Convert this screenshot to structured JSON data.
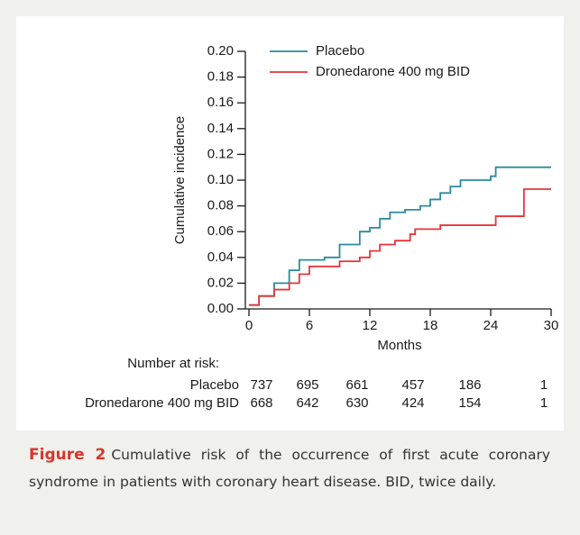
{
  "chart_data": {
    "type": "step",
    "xlabel": "Months",
    "ylabel": "Cumulative incidence",
    "xlim": [
      0,
      30
    ],
    "ylim": [
      0,
      0.2
    ],
    "xticks": [
      0,
      6,
      12,
      18,
      24,
      30
    ],
    "yticks": [
      {
        "value": 0,
        "label": "0.00"
      },
      {
        "value": 0.02,
        "label": "0.02"
      },
      {
        "value": 0.04,
        "label": "0.04"
      },
      {
        "value": 0.06,
        "label": "0.06"
      },
      {
        "value": 0.08,
        "label": "0.08"
      },
      {
        "value": 0.1,
        "label": "0.10"
      },
      {
        "value": 0.12,
        "label": "0.12"
      },
      {
        "value": 0.14,
        "label": "0.14"
      },
      {
        "value": 0.16,
        "label": "0.16"
      },
      {
        "value": 0.18,
        "label": "0.18"
      },
      {
        "value": 0.2,
        "label": "0.20"
      }
    ],
    "legend": "top-left",
    "series": [
      {
        "name": "Placebo",
        "color": "#2b8a9c",
        "x": [
          0,
          1,
          2.5,
          4,
          5,
          7.5,
          9,
          11,
          12,
          13,
          14,
          15.5,
          17,
          18,
          19,
          20,
          21,
          24,
          24.5,
          30
        ],
        "values": [
          0.003,
          0.01,
          0.02,
          0.03,
          0.038,
          0.04,
          0.05,
          0.06,
          0.063,
          0.07,
          0.075,
          0.077,
          0.08,
          0.085,
          0.09,
          0.095,
          0.1,
          0.103,
          0.11,
          0.11
        ]
      },
      {
        "name": "Dronedarone 400 mg BID",
        "color": "#e8343a",
        "x": [
          0,
          1,
          2.5,
          4,
          5,
          6,
          8,
          9,
          11,
          12,
          13,
          14.5,
          16,
          16.5,
          19,
          24,
          24.5,
          27.3,
          30
        ],
        "values": [
          0.003,
          0.01,
          0.015,
          0.02,
          0.027,
          0.033,
          0.033,
          0.037,
          0.04,
          0.045,
          0.05,
          0.053,
          0.058,
          0.062,
          0.065,
          0.065,
          0.072,
          0.093,
          0.093
        ]
      }
    ],
    "at_risk": {
      "title": "Number at risk:",
      "rows": [
        {
          "name": "Placebo",
          "values": [
            "737",
            "695",
            "661",
            "457",
            "186",
            "1"
          ]
        },
        {
          "name": "Dronedarone 400 mg BID",
          "values": [
            "668",
            "642",
            "630",
            "424",
            "154",
            "1"
          ]
        }
      ]
    }
  },
  "caption": {
    "label": "Figure 2",
    "text": "Cumulative risk of the occurrence of first acute coronary syndrome in patients with coronary heart disease. BID, twice daily."
  }
}
